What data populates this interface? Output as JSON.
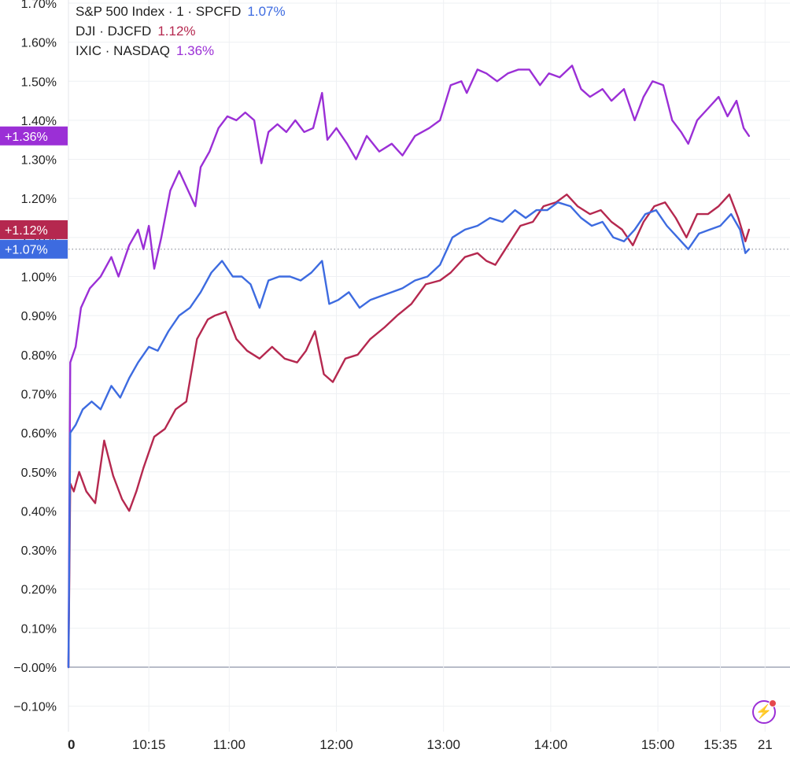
{
  "legend": [
    {
      "label": "S&P 500 Index · 1 · SPCFD",
      "value": "1.07%",
      "color": "#3d6be0"
    },
    {
      "label": "DJI · DJCFD",
      "value": "1.12%",
      "color": "#b5284f"
    },
    {
      "label": "IXIC · NASDAQ",
      "value": "1.36%",
      "color": "#9b2fd6"
    }
  ],
  "icons": {
    "quick_action": "lightning-bolt-icon"
  },
  "chart_data": {
    "type": "line",
    "x_unit": "time of day",
    "xlim": [
      "09:30",
      "16:00"
    ],
    "ylim": [
      -0.14,
      1.72
    ],
    "y_ticks": [
      -0.1,
      -0.0,
      0.1,
      0.2,
      0.3,
      0.4,
      0.5,
      0.6,
      0.7,
      0.8,
      0.9,
      1.0,
      1.1,
      1.2,
      1.3,
      1.4,
      1.5,
      1.6,
      1.7
    ],
    "y_tick_labels": [
      "−0.10%",
      "−0.00%",
      "0.10%",
      "0.20%",
      "0.30%",
      "0.40%",
      "0.50%",
      "0.60%",
      "0.70%",
      "0.80%",
      "0.90%",
      "1.00%",
      "1.10%",
      "1.20%",
      "1.30%",
      "1.40%",
      "1.50%",
      "1.60%",
      "1.70%"
    ],
    "x_ticks": [
      "09:30",
      "10:15",
      "11:00",
      "12:00",
      "13:00",
      "14:00",
      "15:00",
      "15:35",
      "16:00"
    ],
    "x_tick_labels": [
      "0",
      "10:15",
      "11:00",
      "12:00",
      "13:00",
      "14:00",
      "15:00",
      "15:35",
      "21"
    ],
    "grid": true,
    "legend_position": "top-left",
    "last_value_labels": [
      {
        "text": "+1.36%",
        "value": 1.36,
        "color": "#9b2fd6"
      },
      {
        "text": "+1.12%",
        "value": 1.12,
        "color": "#b5284f"
      },
      {
        "text": "+1.07%",
        "value": 1.07,
        "color": "#3d6be0"
      }
    ],
    "reference_line": 1.07,
    "series": [
      {
        "name": "IXIC · NASDAQ",
        "color": "#9b2fd6",
        "points": [
          [
            "09:30",
            0.0
          ],
          [
            "09:31",
            0.78
          ],
          [
            "09:34",
            0.82
          ],
          [
            "09:37",
            0.92
          ],
          [
            "09:42",
            0.97
          ],
          [
            "09:48",
            1.0
          ],
          [
            "09:54",
            1.05
          ],
          [
            "09:58",
            1.0
          ],
          [
            "10:04",
            1.08
          ],
          [
            "10:09",
            1.12
          ],
          [
            "10:12",
            1.07
          ],
          [
            "10:15",
            1.13
          ],
          [
            "10:18",
            1.02
          ],
          [
            "10:22",
            1.1
          ],
          [
            "10:27",
            1.22
          ],
          [
            "10:32",
            1.27
          ],
          [
            "10:37",
            1.22
          ],
          [
            "10:41",
            1.18
          ],
          [
            "10:44",
            1.28
          ],
          [
            "10:49",
            1.32
          ],
          [
            "10:54",
            1.38
          ],
          [
            "10:59",
            1.41
          ],
          [
            "11:04",
            1.4
          ],
          [
            "11:09",
            1.42
          ],
          [
            "11:14",
            1.4
          ],
          [
            "11:18",
            1.29
          ],
          [
            "11:22",
            1.37
          ],
          [
            "11:27",
            1.39
          ],
          [
            "11:32",
            1.37
          ],
          [
            "11:37",
            1.4
          ],
          [
            "11:42",
            1.37
          ],
          [
            "11:47",
            1.38
          ],
          [
            "11:52",
            1.47
          ],
          [
            "11:55",
            1.35
          ],
          [
            "12:00",
            1.38
          ],
          [
            "12:06",
            1.34
          ],
          [
            "12:11",
            1.3
          ],
          [
            "12:17",
            1.36
          ],
          [
            "12:24",
            1.32
          ],
          [
            "12:31",
            1.34
          ],
          [
            "12:37",
            1.31
          ],
          [
            "12:44",
            1.36
          ],
          [
            "12:52",
            1.38
          ],
          [
            "12:58",
            1.4
          ],
          [
            "13:04",
            1.49
          ],
          [
            "13:10",
            1.5
          ],
          [
            "13:13",
            1.47
          ],
          [
            "13:19",
            1.53
          ],
          [
            "13:24",
            1.52
          ],
          [
            "13:30",
            1.5
          ],
          [
            "13:36",
            1.52
          ],
          [
            "13:42",
            1.53
          ],
          [
            "13:48",
            1.53
          ],
          [
            "13:54",
            1.49
          ],
          [
            "13:59",
            1.52
          ],
          [
            "14:05",
            1.51
          ],
          [
            "14:12",
            1.54
          ],
          [
            "14:17",
            1.48
          ],
          [
            "14:22",
            1.46
          ],
          [
            "14:29",
            1.48
          ],
          [
            "14:34",
            1.45
          ],
          [
            "14:41",
            1.48
          ],
          [
            "14:47",
            1.4
          ],
          [
            "14:52",
            1.46
          ],
          [
            "14:57",
            1.5
          ],
          [
            "15:03",
            1.49
          ],
          [
            "15:08",
            1.4
          ],
          [
            "15:13",
            1.37
          ],
          [
            "15:17",
            1.34
          ],
          [
            "15:22",
            1.4
          ],
          [
            "15:28",
            1.43
          ],
          [
            "15:34",
            1.46
          ],
          [
            "15:39",
            1.41
          ],
          [
            "15:44",
            1.45
          ],
          [
            "15:48",
            1.38
          ],
          [
            "15:51",
            1.36
          ]
        ]
      },
      {
        "name": "DJI · DJCFD",
        "color": "#b5284f",
        "points": [
          [
            "09:30",
            0.0
          ],
          [
            "09:31",
            0.47
          ],
          [
            "09:33",
            0.45
          ],
          [
            "09:36",
            0.5
          ],
          [
            "09:40",
            0.45
          ],
          [
            "09:45",
            0.42
          ],
          [
            "09:50",
            0.58
          ],
          [
            "09:55",
            0.49
          ],
          [
            "10:00",
            0.43
          ],
          [
            "10:04",
            0.4
          ],
          [
            "10:08",
            0.45
          ],
          [
            "10:12",
            0.51
          ],
          [
            "10:18",
            0.59
          ],
          [
            "10:24",
            0.61
          ],
          [
            "10:30",
            0.66
          ],
          [
            "10:36",
            0.68
          ],
          [
            "10:42",
            0.84
          ],
          [
            "10:48",
            0.89
          ],
          [
            "10:52",
            0.9
          ],
          [
            "10:58",
            0.91
          ],
          [
            "11:04",
            0.84
          ],
          [
            "11:10",
            0.81
          ],
          [
            "11:17",
            0.79
          ],
          [
            "11:24",
            0.82
          ],
          [
            "11:31",
            0.79
          ],
          [
            "11:38",
            0.78
          ],
          [
            "11:43",
            0.81
          ],
          [
            "11:48",
            0.86
          ],
          [
            "11:53",
            0.75
          ],
          [
            "11:58",
            0.73
          ],
          [
            "12:05",
            0.79
          ],
          [
            "12:12",
            0.8
          ],
          [
            "12:19",
            0.84
          ],
          [
            "12:27",
            0.87
          ],
          [
            "12:34",
            0.9
          ],
          [
            "12:42",
            0.93
          ],
          [
            "12:50",
            0.98
          ],
          [
            "12:58",
            0.99
          ],
          [
            "13:04",
            1.01
          ],
          [
            "13:12",
            1.05
          ],
          [
            "13:19",
            1.06
          ],
          [
            "13:24",
            1.04
          ],
          [
            "13:29",
            1.03
          ],
          [
            "13:36",
            1.08
          ],
          [
            "13:43",
            1.13
          ],
          [
            "13:50",
            1.14
          ],
          [
            "13:56",
            1.18
          ],
          [
            "14:03",
            1.19
          ],
          [
            "14:09",
            1.21
          ],
          [
            "14:15",
            1.18
          ],
          [
            "14:22",
            1.16
          ],
          [
            "14:28",
            1.17
          ],
          [
            "14:34",
            1.14
          ],
          [
            "14:40",
            1.12
          ],
          [
            "14:46",
            1.08
          ],
          [
            "14:52",
            1.14
          ],
          [
            "14:58",
            1.18
          ],
          [
            "15:04",
            1.19
          ],
          [
            "15:10",
            1.15
          ],
          [
            "15:16",
            1.1
          ],
          [
            "15:22",
            1.16
          ],
          [
            "15:28",
            1.16
          ],
          [
            "15:34",
            1.18
          ],
          [
            "15:40",
            1.21
          ],
          [
            "15:45",
            1.15
          ],
          [
            "15:49",
            1.09
          ],
          [
            "15:51",
            1.12
          ]
        ]
      },
      {
        "name": "S&P 500 Index · 1 · SPCFD",
        "color": "#3d6be0",
        "points": [
          [
            "09:30",
            0.0
          ],
          [
            "09:31",
            0.6
          ],
          [
            "09:34",
            0.62
          ],
          [
            "09:38",
            0.66
          ],
          [
            "09:43",
            0.68
          ],
          [
            "09:48",
            0.66
          ],
          [
            "09:54",
            0.72
          ],
          [
            "09:59",
            0.69
          ],
          [
            "10:04",
            0.74
          ],
          [
            "10:09",
            0.78
          ],
          [
            "10:15",
            0.82
          ],
          [
            "10:20",
            0.81
          ],
          [
            "10:26",
            0.86
          ],
          [
            "10:32",
            0.9
          ],
          [
            "10:38",
            0.92
          ],
          [
            "10:44",
            0.96
          ],
          [
            "10:50",
            1.01
          ],
          [
            "10:56",
            1.04
          ],
          [
            "11:02",
            1.0
          ],
          [
            "11:07",
            1.0
          ],
          [
            "11:12",
            0.98
          ],
          [
            "11:17",
            0.92
          ],
          [
            "11:22",
            0.99
          ],
          [
            "11:28",
            1.0
          ],
          [
            "11:34",
            1.0
          ],
          [
            "11:40",
            0.99
          ],
          [
            "11:46",
            1.01
          ],
          [
            "11:52",
            1.04
          ],
          [
            "11:56",
            0.93
          ],
          [
            "12:01",
            0.94
          ],
          [
            "12:07",
            0.96
          ],
          [
            "12:13",
            0.92
          ],
          [
            "12:19",
            0.94
          ],
          [
            "12:25",
            0.95
          ],
          [
            "12:31",
            0.96
          ],
          [
            "12:37",
            0.97
          ],
          [
            "12:44",
            0.99
          ],
          [
            "12:51",
            1.0
          ],
          [
            "12:58",
            1.03
          ],
          [
            "13:05",
            1.1
          ],
          [
            "13:12",
            1.12
          ],
          [
            "13:19",
            1.13
          ],
          [
            "13:26",
            1.15
          ],
          [
            "13:33",
            1.14
          ],
          [
            "13:40",
            1.17
          ],
          [
            "13:46",
            1.15
          ],
          [
            "13:52",
            1.17
          ],
          [
            "13:58",
            1.17
          ],
          [
            "14:04",
            1.19
          ],
          [
            "14:11",
            1.18
          ],
          [
            "14:17",
            1.15
          ],
          [
            "14:23",
            1.13
          ],
          [
            "14:29",
            1.14
          ],
          [
            "14:35",
            1.1
          ],
          [
            "14:41",
            1.09
          ],
          [
            "14:47",
            1.12
          ],
          [
            "14:53",
            1.16
          ],
          [
            "14:59",
            1.17
          ],
          [
            "15:05",
            1.13
          ],
          [
            "15:11",
            1.1
          ],
          [
            "15:17",
            1.07
          ],
          [
            "15:23",
            1.11
          ],
          [
            "15:29",
            1.12
          ],
          [
            "15:35",
            1.13
          ],
          [
            "15:41",
            1.16
          ],
          [
            "15:46",
            1.12
          ],
          [
            "15:49",
            1.06
          ],
          [
            "15:51",
            1.07
          ]
        ]
      }
    ]
  }
}
